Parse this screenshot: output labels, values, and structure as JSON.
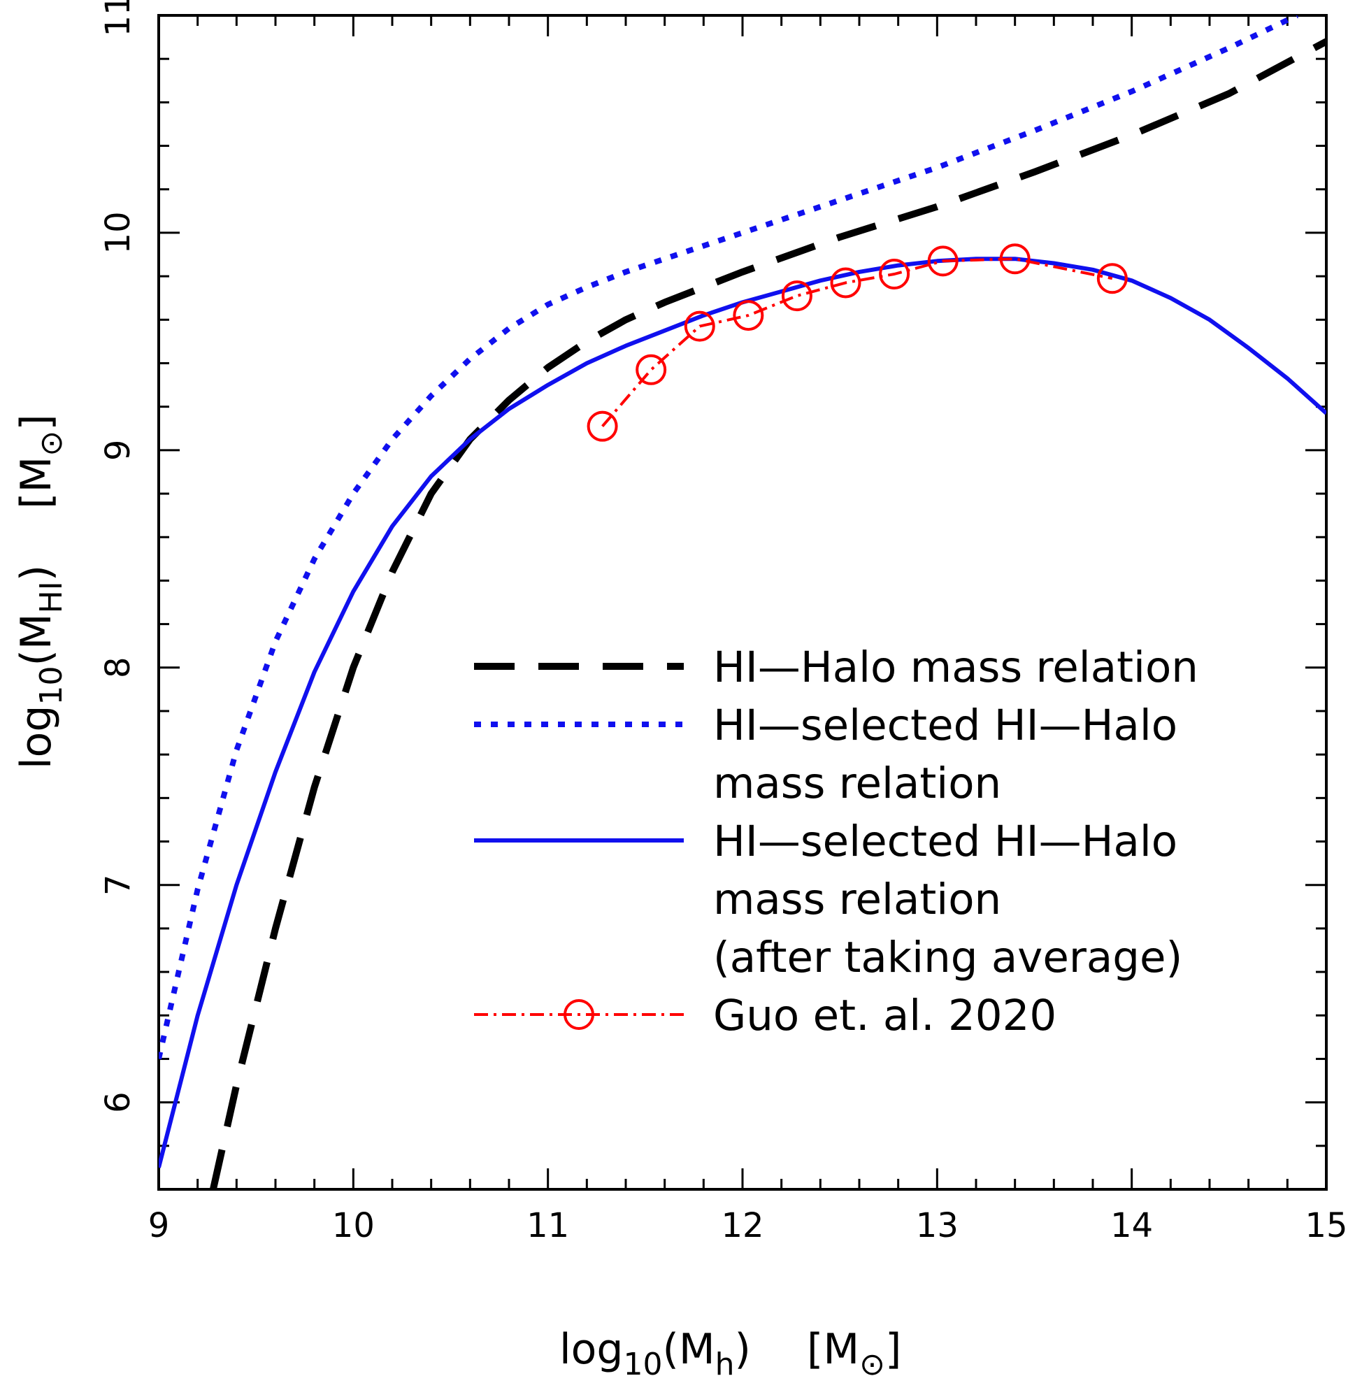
{
  "chart_data": {
    "type": "line",
    "title": "",
    "xlabel": {
      "prefix": "log",
      "sub": "10",
      "open": "(M",
      "var_sub": "h",
      "close": ")",
      "unit": "[M",
      "unit_close": "]"
    },
    "ylabel": {
      "prefix": "log",
      "sub": "10",
      "open": "(M",
      "var_sub": "HI",
      "close": ")",
      "unit": "[M",
      "unit_close": "]"
    },
    "xlim": [
      9,
      15
    ],
    "ylim": [
      5.6,
      11
    ],
    "xticks": [
      "9",
      "10",
      "11",
      "12",
      "13",
      "14",
      "15"
    ],
    "yticks": [
      "6",
      "7",
      "8",
      "9",
      "10",
      "11"
    ],
    "legend_position": "lower-right",
    "series": [
      {
        "name": "HI-Halo mass relation",
        "legend_lines": [
          "HI—Halo mass relation"
        ],
        "color": "#000000",
        "style": "long-dash",
        "x": [
          9.28,
          9.4,
          9.6,
          9.8,
          10.0,
          10.2,
          10.4,
          10.6,
          10.8,
          11.0,
          11.2,
          11.4,
          11.6,
          11.8,
          12.0,
          12.5,
          13.0,
          13.5,
          14.0,
          14.5,
          15.0
        ],
        "y": [
          5.6,
          6.08,
          6.8,
          7.45,
          8.0,
          8.44,
          8.8,
          9.05,
          9.23,
          9.38,
          9.5,
          9.6,
          9.68,
          9.75,
          9.82,
          9.98,
          10.12,
          10.28,
          10.45,
          10.64,
          10.88
        ]
      },
      {
        "name": "HI-selected HI-Halo mass relation",
        "legend_lines": [
          "HI—selected HI—Halo",
          "mass relation"
        ],
        "color": "#1010ee",
        "style": "dotted",
        "x": [
          9.0,
          9.2,
          9.4,
          9.6,
          9.8,
          10.0,
          10.2,
          10.4,
          10.6,
          10.8,
          11.0,
          11.2,
          11.4,
          11.6,
          11.8,
          12.0,
          12.5,
          13.0,
          13.5,
          14.0,
          14.5,
          14.85
        ],
        "y": [
          6.2,
          6.98,
          7.62,
          8.12,
          8.5,
          8.8,
          9.05,
          9.25,
          9.42,
          9.56,
          9.67,
          9.75,
          9.82,
          9.88,
          9.94,
          10.0,
          10.15,
          10.3,
          10.47,
          10.65,
          10.85,
          11.0
        ]
      },
      {
        "name": "HI-selected HI-Halo mass relation (after taking average)",
        "legend_lines": [
          "HI—selected HI—Halo",
          "mass relation",
          "(after taking average)"
        ],
        "color": "#1010ee",
        "style": "solid",
        "x": [
          9.0,
          9.2,
          9.4,
          9.6,
          9.8,
          10.0,
          10.2,
          10.4,
          10.6,
          10.8,
          11.0,
          11.2,
          11.4,
          11.6,
          11.8,
          12.0,
          12.2,
          12.4,
          12.6,
          12.8,
          13.0,
          13.2,
          13.4,
          13.6,
          13.8,
          14.0,
          14.2,
          14.4,
          14.6,
          14.8,
          15.0
        ],
        "y": [
          5.7,
          6.4,
          7.0,
          7.52,
          7.98,
          8.35,
          8.65,
          8.88,
          9.05,
          9.19,
          9.3,
          9.4,
          9.48,
          9.55,
          9.62,
          9.68,
          9.73,
          9.78,
          9.82,
          9.85,
          9.87,
          9.88,
          9.88,
          9.86,
          9.83,
          9.78,
          9.7,
          9.6,
          9.47,
          9.33,
          9.17
        ]
      },
      {
        "name": "Guo et. al. 2020",
        "legend_lines": [
          "Guo et. al. 2020"
        ],
        "color": "#ff0000",
        "style": "dash-dot-markers",
        "marker": "open-circle",
        "x": [
          11.28,
          11.53,
          11.78,
          12.03,
          12.28,
          12.53,
          12.78,
          13.03,
          13.4,
          13.9
        ],
        "y": [
          9.11,
          9.37,
          9.57,
          9.62,
          9.71,
          9.77,
          9.81,
          9.87,
          9.88,
          9.79
        ]
      }
    ]
  }
}
